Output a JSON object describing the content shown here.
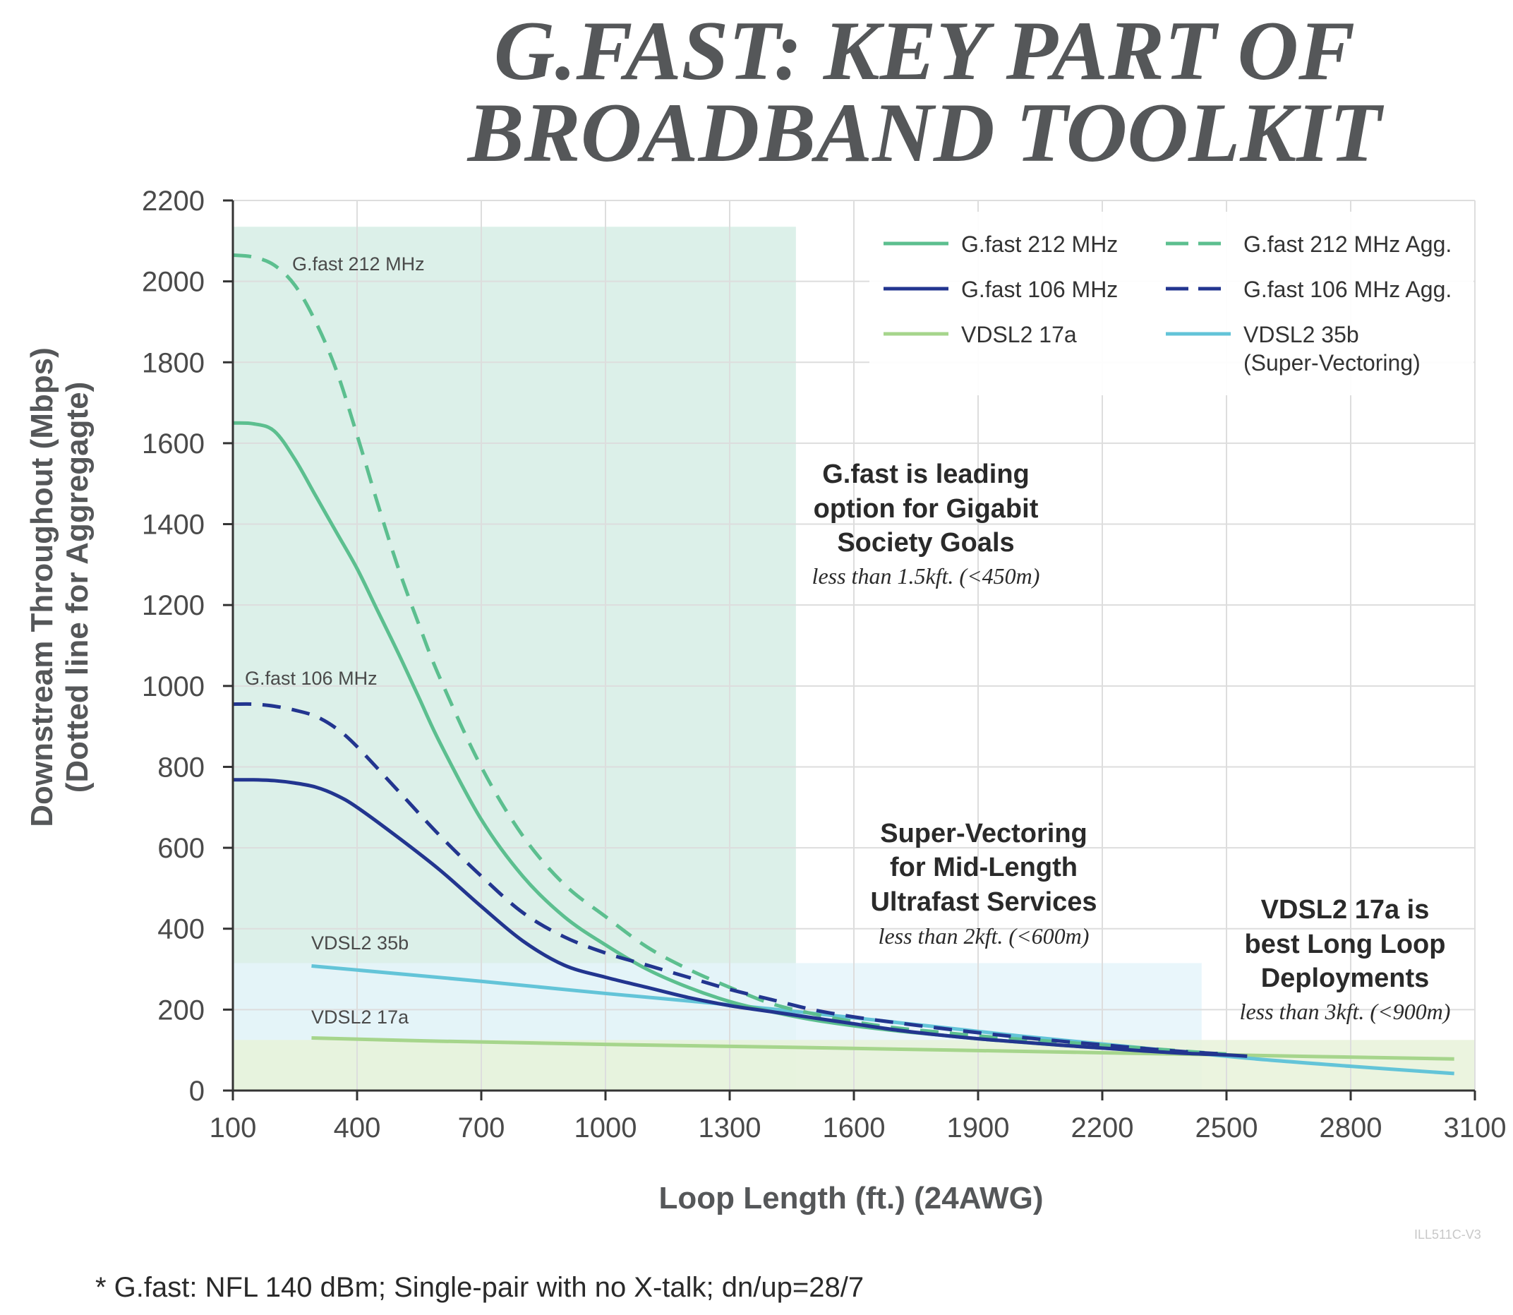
{
  "title": {
    "line1": "G.FAST: KEY PART OF",
    "line2": "BROADBAND TOOLKIT"
  },
  "colors": {
    "gfast212": "#5cbf8f",
    "gfast106": "#22358f",
    "vdsl17a": "#a6d58c",
    "vdsl35b": "#63c4d8",
    "zone_gfast": "#d6ede5",
    "zone_vectoring": "#e5f5fa",
    "zone_vdsl": "#e7f2d9",
    "grid": "#dddddd"
  },
  "chart_data": {
    "type": "line",
    "xlabel": "Loop Length (ft.) (24AWG)",
    "ylabel_line1": "Downstream Throughout (Mbps)",
    "ylabel_line2": "(Dotted line for Aggregagte)",
    "xlim": [
      100,
      3100
    ],
    "ylim": [
      0,
      2200
    ],
    "x_ticks": [
      100,
      400,
      700,
      1000,
      1300,
      1600,
      1900,
      2200,
      2500,
      2800,
      3100
    ],
    "y_ticks": [
      0,
      200,
      400,
      600,
      800,
      1000,
      1200,
      1400,
      1600,
      1800,
      2000,
      2200
    ],
    "grid": true,
    "legend_position": "top-right",
    "series": [
      {
        "key": "g212agg",
        "name": "G.fast 212 MHz Agg.",
        "color": "#5cbf8f",
        "dashed": true,
        "x": [
          100,
          150,
          200,
          250,
          300,
          350,
          400,
          450,
          500,
          550,
          600,
          700,
          800,
          900,
          1000,
          1100,
          1200,
          1300,
          1400,
          1500,
          1600,
          1700,
          1800,
          1900,
          2000,
          2100,
          2200,
          2300,
          2400,
          2500
        ],
        "y": [
          2065,
          2060,
          2040,
          1990,
          1900,
          1780,
          1620,
          1450,
          1290,
          1150,
          1020,
          800,
          630,
          510,
          430,
          355,
          300,
          255,
          215,
          190,
          170,
          155,
          145,
          135,
          127,
          120,
          112,
          105,
          97,
          90
        ]
      },
      {
        "key": "g212",
        "name": "G.fast 212 MHz",
        "color": "#5cbf8f",
        "dashed": false,
        "x": [
          100,
          150,
          200,
          250,
          300,
          350,
          400,
          450,
          500,
          550,
          600,
          700,
          800,
          900,
          1000,
          1100,
          1200,
          1300,
          1400,
          1500,
          1600,
          1700,
          1800,
          1900,
          2000,
          2100,
          2200,
          2300,
          2400,
          2500
        ],
        "y": [
          1650,
          1648,
          1630,
          1560,
          1470,
          1380,
          1290,
          1185,
          1080,
          970,
          860,
          670,
          530,
          430,
          360,
          300,
          255,
          220,
          195,
          175,
          160,
          148,
          138,
          128,
          120,
          112,
          105,
          99,
          94,
          90
        ]
      },
      {
        "key": "g106agg",
        "name": "G.fast 106 MHz Agg.",
        "color": "#22358f",
        "dashed": true,
        "x": [
          100,
          150,
          200,
          250,
          300,
          350,
          400,
          500,
          600,
          700,
          800,
          900,
          1000,
          1100,
          1200,
          1300,
          1400,
          1500,
          1600,
          1700,
          1800,
          1900,
          2000,
          2100,
          2200,
          2300,
          2400,
          2500
        ],
        "y": [
          955,
          955,
          950,
          940,
          925,
          895,
          850,
          740,
          630,
          530,
          440,
          380,
          340,
          310,
          280,
          250,
          225,
          200,
          182,
          168,
          155,
          143,
          132,
          122,
          113,
          104,
          96,
          90
        ]
      },
      {
        "key": "g106",
        "name": "G.fast 106 MHz",
        "color": "#22358f",
        "dashed": false,
        "x": [
          100,
          150,
          200,
          250,
          300,
          350,
          400,
          500,
          600,
          700,
          800,
          900,
          1000,
          1100,
          1200,
          1300,
          1400,
          1500,
          1600,
          1700,
          1800,
          1900,
          2000,
          2100,
          2200,
          2300,
          2400,
          2500,
          2550
        ],
        "y": [
          768,
          768,
          766,
          760,
          750,
          730,
          700,
          625,
          545,
          455,
          370,
          310,
          280,
          255,
          230,
          210,
          195,
          180,
          165,
          150,
          138,
          128,
          120,
          112,
          105,
          98,
          92,
          88,
          85
        ]
      },
      {
        "key": "v17a",
        "name": "VDSL2 17a",
        "color": "#a6d58c",
        "dashed": false,
        "x": [
          290,
          600,
          1000,
          1500,
          2000,
          2500,
          3050
        ],
        "y": [
          130,
          122,
          114,
          106,
          97,
          88,
          78
        ]
      },
      {
        "key": "v35b",
        "name": "VDSL2 35b (Super-Vectoring)",
        "color": "#63c4d8",
        "dashed": false,
        "x": [
          290,
          700,
          1000,
          1300,
          1600,
          2000,
          2300,
          2550,
          2800,
          3050
        ],
        "y": [
          308,
          270,
          240,
          212,
          180,
          135,
          105,
          80,
          60,
          42
        ]
      }
    ],
    "zones": [
      {
        "key": "gfast",
        "x0": 100,
        "x1": 1460,
        "y1": 2135,
        "color": "#d6ede5"
      },
      {
        "key": "vectoring",
        "x0": 100,
        "x1": 2440,
        "y1": 315,
        "color": "#e5f5fa"
      },
      {
        "key": "vdsl",
        "x0": 100,
        "x1": 3100,
        "y1": 125,
        "color": "#e7f2d9"
      }
    ],
    "legend": {
      "g212": "G.fast 212 MHz",
      "g212agg": "G.fast 212 MHz Agg.",
      "g106": "G.fast 106 MHz",
      "g106agg": "G.fast 106 MHz Agg.",
      "v17a": "VDSL2 17a",
      "v35b_line1": "VDSL2 35b",
      "v35b_line2": "(Super-Vectoring)"
    },
    "inline_labels": {
      "g212": "G.fast 212 MHz",
      "g106": "G.fast 106 MHz",
      "v35b": "VDSL2 35b",
      "v17a": "VDSL2 17a"
    },
    "annotations": {
      "gfast": {
        "lines": [
          "G.fast is leading",
          "option for Gigabit",
          "Society Goals"
        ],
        "note": "less than 1.5kft. (<450m)"
      },
      "vectoring": {
        "lines": [
          "Super-Vectoring",
          "for Mid-Length",
          "Ultrafast Services"
        ],
        "note": "less than 2kft. (<600m)"
      },
      "vdsl": {
        "lines": [
          "VDSL2 17a is",
          "best Long Loop",
          "Deployments"
        ],
        "note": "less than 3kft. (<900m)"
      }
    }
  },
  "footnote": "* G.fast: NFL 140 dBm; Single-pair with no X-talk; dn/up=28/7",
  "watermark": "ILL511C-V3"
}
